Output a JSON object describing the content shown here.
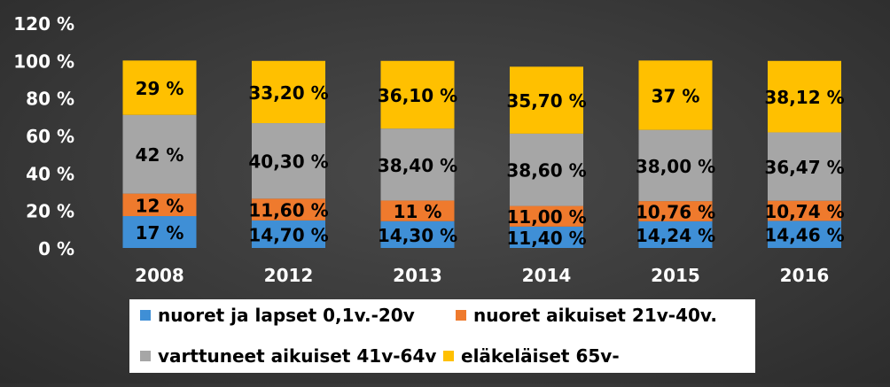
{
  "chart_data": {
    "type": "bar",
    "stacked": true,
    "categories": [
      "2008",
      "2012",
      "2013",
      "2014",
      "2015",
      "2016"
    ],
    "ylim": [
      0,
      120
    ],
    "yticks": [
      "0 %",
      "20 %",
      "40 %",
      "60 %",
      "80 %",
      "100 %",
      "120 %"
    ],
    "grid": false,
    "legend_position": "bottom",
    "series": [
      {
        "name": "nuoret ja lapset 0,1v.-20v",
        "color": "#3f8fd6",
        "values": [
          17,
          14.7,
          14.3,
          11.4,
          14.24,
          14.46
        ],
        "labels": [
          "17 %",
          "14,70 %",
          "14,30 %",
          "11,40 %",
          "14,24 %",
          "14,46 %"
        ]
      },
      {
        "name": "nuoret aikuiset 21v-40v.",
        "color": "#ef7a2d",
        "values": [
          12,
          11.6,
          11,
          11,
          10.76,
          10.74
        ],
        "labels": [
          "12 %",
          "11,60 %",
          "11 %",
          "11,00 %",
          "10,76 %",
          "10,74 %"
        ]
      },
      {
        "name": "varttuneet aikuiset 41v-64v",
        "color": "#a6a6a6",
        "values": [
          42,
          40.3,
          38.4,
          38.6,
          38,
          36.47
        ],
        "labels": [
          "42 %",
          "40,30 %",
          "38,40 %",
          "38,60 %",
          "38,00 %",
          "36,47 %"
        ]
      },
      {
        "name": "eläkeläiset  65v-",
        "color": "#ffc000",
        "values": [
          29,
          33.2,
          36.1,
          35.7,
          37,
          38.12
        ],
        "labels": [
          "29 %",
          "33,20 %",
          "36,10 %",
          "35,70 %",
          "37 %",
          "38,12 %"
        ]
      }
    ]
  }
}
